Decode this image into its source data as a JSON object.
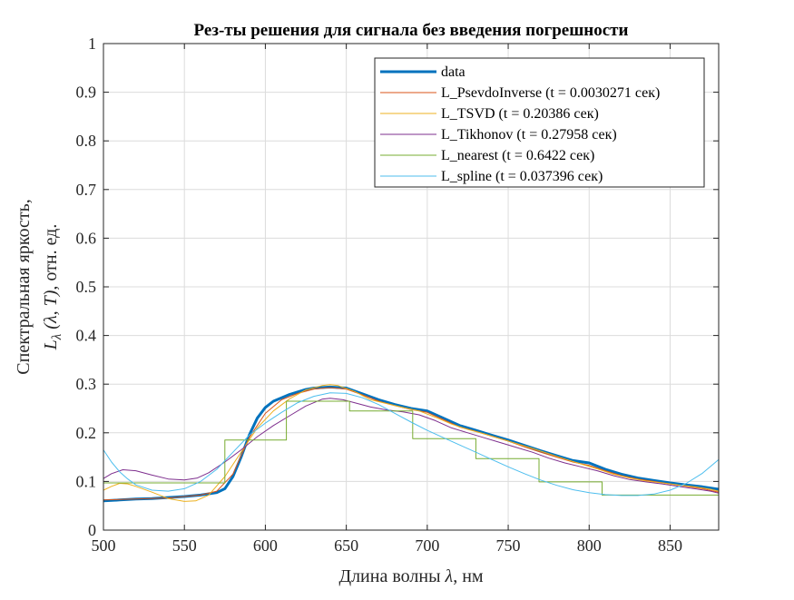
{
  "chart_data": {
    "type": "line",
    "title": "Рез-ты решения для сигнала без введения погрешности",
    "xlabel_text": "Длина волны ",
    "xlabel_symbol": "λ",
    "xlabel_unit": ", нм",
    "ylabel_line1": "Спектральная яркость,",
    "ylabel_L": "L",
    "ylabel_sub": "λ",
    "ylabel_args": " (λ, T)",
    "ylabel_unit": ", отн. ед.",
    "xlim": [
      500,
      880
    ],
    "ylim": [
      0,
      1
    ],
    "xticks": [
      500,
      550,
      600,
      650,
      700,
      750,
      800,
      850
    ],
    "xtick_labels": [
      "500",
      "550",
      "600",
      "650",
      "700",
      "750",
      "800",
      "850"
    ],
    "yticks": [
      0,
      0.1,
      0.2,
      0.3,
      0.4,
      0.5,
      0.6,
      0.7,
      0.8,
      0.9,
      1
    ],
    "ytick_labels": [
      "0",
      "0.1",
      "0.2",
      "0.3",
      "0.4",
      "0.5",
      "0.6",
      "0.7",
      "0.8",
      "0.9",
      "1"
    ],
    "grid": true,
    "legend_position": "top-right",
    "series": [
      {
        "name": "data",
        "color": "#0072BD",
        "width": 3,
        "step": false,
        "points": [
          [
            500,
            0.06
          ],
          [
            510,
            0.062
          ],
          [
            520,
            0.064
          ],
          [
            530,
            0.065
          ],
          [
            540,
            0.067
          ],
          [
            550,
            0.069
          ],
          [
            560,
            0.072
          ],
          [
            570,
            0.077
          ],
          [
            575,
            0.085
          ],
          [
            580,
            0.11
          ],
          [
            585,
            0.15
          ],
          [
            590,
            0.195
          ],
          [
            595,
            0.23
          ],
          [
            600,
            0.252
          ],
          [
            605,
            0.265
          ],
          [
            610,
            0.272
          ],
          [
            615,
            0.279
          ],
          [
            620,
            0.284
          ],
          [
            625,
            0.289
          ],
          [
            630,
            0.292
          ],
          [
            640,
            0.294
          ],
          [
            650,
            0.292
          ],
          [
            660,
            0.28
          ],
          [
            670,
            0.268
          ],
          [
            680,
            0.258
          ],
          [
            690,
            0.25
          ],
          [
            700,
            0.245
          ],
          [
            710,
            0.23
          ],
          [
            720,
            0.215
          ],
          [
            730,
            0.205
          ],
          [
            740,
            0.195
          ],
          [
            750,
            0.185
          ],
          [
            760,
            0.174
          ],
          [
            770,
            0.163
          ],
          [
            780,
            0.153
          ],
          [
            790,
            0.143
          ],
          [
            800,
            0.138
          ],
          [
            810,
            0.125
          ],
          [
            820,
            0.115
          ],
          [
            830,
            0.107
          ],
          [
            840,
            0.102
          ],
          [
            850,
            0.097
          ],
          [
            860,
            0.093
          ],
          [
            870,
            0.089
          ],
          [
            880,
            0.084
          ]
        ]
      },
      {
        "name": "L_PsevdoInverse (t = 0.0030271 сек)",
        "color": "#D95319",
        "width": 1,
        "step": false,
        "points": [
          [
            500,
            0.062
          ],
          [
            520,
            0.064
          ],
          [
            540,
            0.066
          ],
          [
            560,
            0.072
          ],
          [
            570,
            0.08
          ],
          [
            580,
            0.115
          ],
          [
            590,
            0.19
          ],
          [
            600,
            0.24
          ],
          [
            610,
            0.268
          ],
          [
            620,
            0.281
          ],
          [
            630,
            0.29
          ],
          [
            640,
            0.293
          ],
          [
            650,
            0.29
          ],
          [
            660,
            0.278
          ],
          [
            670,
            0.265
          ],
          [
            680,
            0.256
          ],
          [
            690,
            0.248
          ],
          [
            700,
            0.242
          ],
          [
            710,
            0.227
          ],
          [
            720,
            0.212
          ],
          [
            730,
            0.203
          ],
          [
            740,
            0.193
          ],
          [
            750,
            0.183
          ],
          [
            760,
            0.171
          ],
          [
            770,
            0.16
          ],
          [
            780,
            0.15
          ],
          [
            790,
            0.14
          ],
          [
            800,
            0.133
          ],
          [
            810,
            0.122
          ],
          [
            820,
            0.112
          ],
          [
            830,
            0.105
          ],
          [
            840,
            0.1
          ],
          [
            850,
            0.095
          ],
          [
            860,
            0.09
          ],
          [
            870,
            0.085
          ],
          [
            880,
            0.078
          ]
        ]
      },
      {
        "name": "L_TSVD (t = 0.20386 сек)",
        "color": "#EDB120",
        "width": 1,
        "step": false,
        "points": [
          [
            500,
            0.082
          ],
          [
            505,
            0.09
          ],
          [
            510,
            0.096
          ],
          [
            515,
            0.095
          ],
          [
            520,
            0.09
          ],
          [
            530,
            0.078
          ],
          [
            540,
            0.065
          ],
          [
            550,
            0.059
          ],
          [
            557,
            0.06
          ],
          [
            565,
            0.072
          ],
          [
            575,
            0.11
          ],
          [
            585,
            0.16
          ],
          [
            595,
            0.21
          ],
          [
            605,
            0.245
          ],
          [
            615,
            0.27
          ],
          [
            625,
            0.288
          ],
          [
            635,
            0.297
          ],
          [
            640,
            0.299
          ],
          [
            645,
            0.297
          ],
          [
            655,
            0.285
          ],
          [
            665,
            0.268
          ],
          [
            675,
            0.26
          ],
          [
            685,
            0.252
          ],
          [
            695,
            0.245
          ],
          [
            705,
            0.232
          ],
          [
            715,
            0.218
          ],
          [
            725,
            0.207
          ],
          [
            735,
            0.198
          ],
          [
            745,
            0.188
          ],
          [
            755,
            0.178
          ],
          [
            765,
            0.168
          ],
          [
            775,
            0.157
          ],
          [
            785,
            0.146
          ],
          [
            795,
            0.136
          ],
          [
            805,
            0.126
          ],
          [
            815,
            0.115
          ],
          [
            825,
            0.107
          ],
          [
            835,
            0.101
          ],
          [
            845,
            0.097
          ],
          [
            855,
            0.093
          ],
          [
            865,
            0.089
          ],
          [
            875,
            0.084
          ],
          [
            880,
            0.08
          ]
        ]
      },
      {
        "name": "L_Tikhonov (t = 0.27958 сек)",
        "color": "#7E2F8E",
        "width": 1,
        "step": false,
        "points": [
          [
            500,
            0.106
          ],
          [
            505,
            0.116
          ],
          [
            512,
            0.124
          ],
          [
            520,
            0.122
          ],
          [
            530,
            0.113
          ],
          [
            540,
            0.105
          ],
          [
            550,
            0.103
          ],
          [
            558,
            0.107
          ],
          [
            565,
            0.118
          ],
          [
            575,
            0.14
          ],
          [
            585,
            0.165
          ],
          [
            595,
            0.192
          ],
          [
            605,
            0.215
          ],
          [
            615,
            0.235
          ],
          [
            625,
            0.255
          ],
          [
            635,
            0.269
          ],
          [
            640,
            0.271
          ],
          [
            648,
            0.268
          ],
          [
            655,
            0.262
          ],
          [
            665,
            0.253
          ],
          [
            675,
            0.247
          ],
          [
            685,
            0.243
          ],
          [
            695,
            0.237
          ],
          [
            705,
            0.225
          ],
          [
            715,
            0.21
          ],
          [
            725,
            0.2
          ],
          [
            735,
            0.19
          ],
          [
            745,
            0.18
          ],
          [
            755,
            0.17
          ],
          [
            765,
            0.16
          ],
          [
            775,
            0.148
          ],
          [
            785,
            0.138
          ],
          [
            795,
            0.13
          ],
          [
            805,
            0.122
          ],
          [
            815,
            0.112
          ],
          [
            825,
            0.104
          ],
          [
            835,
            0.099
          ],
          [
            845,
            0.095
          ],
          [
            855,
            0.09
          ],
          [
            865,
            0.085
          ],
          [
            875,
            0.08
          ],
          [
            880,
            0.076
          ]
        ]
      },
      {
        "name": "L_nearest (t = 0.6422 сек)",
        "color": "#77AC30",
        "width": 1,
        "step": true,
        "points": [
          [
            500,
            0.097
          ],
          [
            575,
            0.097
          ],
          [
            575,
            0.185
          ],
          [
            613,
            0.185
          ],
          [
            613,
            0.265
          ],
          [
            652,
            0.265
          ],
          [
            652,
            0.245
          ],
          [
            691,
            0.245
          ],
          [
            691,
            0.188
          ],
          [
            730,
            0.188
          ],
          [
            730,
            0.147
          ],
          [
            769,
            0.147
          ],
          [
            769,
            0.099
          ],
          [
            808,
            0.099
          ],
          [
            808,
            0.072
          ],
          [
            880,
            0.072
          ]
        ]
      },
      {
        "name": "L_spline (t = 0.037396 сек)",
        "color": "#4DBEEE",
        "width": 1,
        "step": false,
        "points": [
          [
            500,
            0.165
          ],
          [
            505,
            0.14
          ],
          [
            510,
            0.12
          ],
          [
            515,
            0.105
          ],
          [
            520,
            0.093
          ],
          [
            530,
            0.082
          ],
          [
            540,
            0.08
          ],
          [
            550,
            0.085
          ],
          [
            560,
            0.1
          ],
          [
            570,
            0.125
          ],
          [
            580,
            0.16
          ],
          [
            590,
            0.195
          ],
          [
            600,
            0.22
          ],
          [
            610,
            0.242
          ],
          [
            620,
            0.262
          ],
          [
            630,
            0.275
          ],
          [
            640,
            0.282
          ],
          [
            650,
            0.281
          ],
          [
            660,
            0.272
          ],
          [
            670,
            0.258
          ],
          [
            680,
            0.24
          ],
          [
            690,
            0.222
          ],
          [
            700,
            0.205
          ],
          [
            710,
            0.19
          ],
          [
            720,
            0.175
          ],
          [
            730,
            0.16
          ],
          [
            740,
            0.145
          ],
          [
            750,
            0.13
          ],
          [
            760,
            0.116
          ],
          [
            770,
            0.103
          ],
          [
            780,
            0.092
          ],
          [
            790,
            0.083
          ],
          [
            800,
            0.077
          ],
          [
            810,
            0.073
          ],
          [
            820,
            0.071
          ],
          [
            830,
            0.071
          ],
          [
            840,
            0.074
          ],
          [
            850,
            0.082
          ],
          [
            860,
            0.096
          ],
          [
            870,
            0.117
          ],
          [
            880,
            0.145
          ]
        ]
      }
    ]
  }
}
